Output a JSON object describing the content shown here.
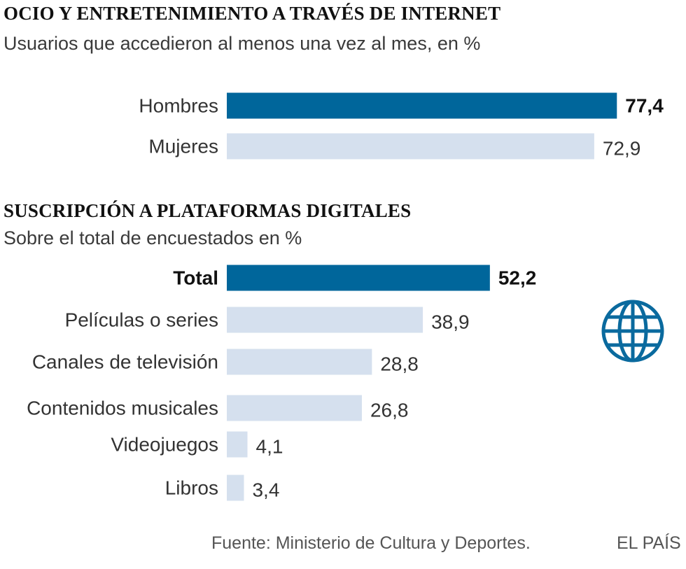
{
  "colors": {
    "accent": "#00669b",
    "light": "#d5e0ee",
    "globe": "#0a6a9e"
  },
  "chart_data": [
    {
      "type": "bar",
      "orientation": "horizontal",
      "title": "OCIO Y ENTRETENIMIENTO A TRAVÉS DE INTERNET",
      "subtitle": "Usuarios que accedieron al menos una vez al mes, en %",
      "categories": [
        "Hombres",
        "Mujeres"
      ],
      "values": [
        77.4,
        72.9
      ],
      "value_labels": [
        "77,4",
        "72,9"
      ],
      "highlight": [
        true,
        false
      ]
    },
    {
      "type": "bar",
      "orientation": "horizontal",
      "title": "SUSCRIPCIÓN A PLATAFORMAS DIGITALES",
      "subtitle": "Sobre el total de encuestados en %",
      "categories": [
        "Total",
        "Películas o series",
        "Canales de televisión",
        "Contenidos musicales",
        "Videojuegos",
        "Libros"
      ],
      "values": [
        52.2,
        38.9,
        28.8,
        26.8,
        4.1,
        3.4
      ],
      "value_labels": [
        "52,2",
        "38,9",
        "28,8",
        "26,8",
        "4,1",
        "3,4"
      ],
      "highlight": [
        true,
        false,
        false,
        false,
        false,
        false
      ]
    }
  ],
  "icons": [
    "globe-icon"
  ],
  "footer": {
    "source": "Fuente: Ministerio de Cultura y Deportes.",
    "brand": "EL PAÍS"
  }
}
